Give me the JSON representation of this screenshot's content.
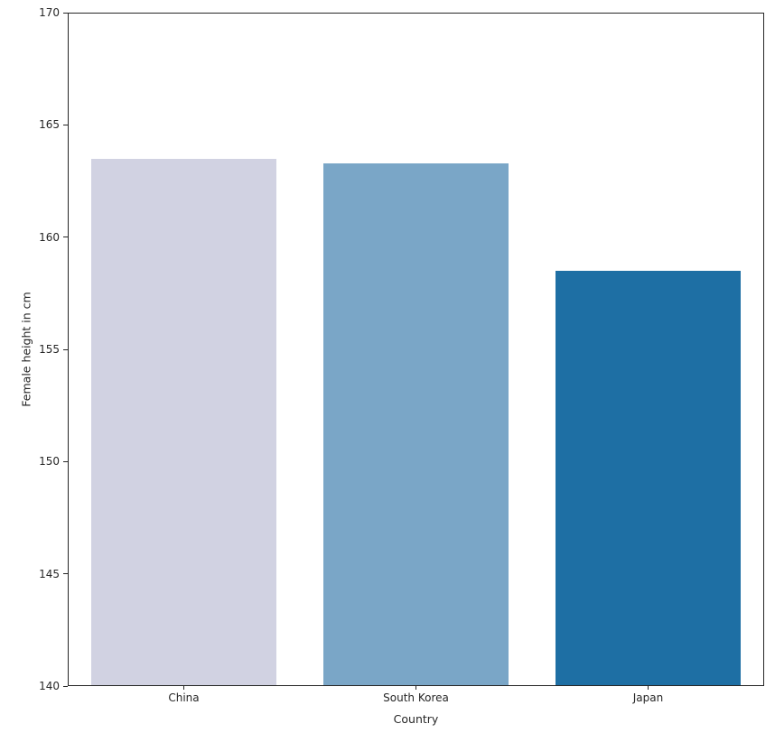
{
  "figure": {
    "background": "#ffffff",
    "spine_color": "#262626",
    "text_color": "#262626"
  },
  "chart_data": {
    "type": "bar",
    "categories": [
      "China",
      "South Korea",
      "Japan"
    ],
    "values": [
      163.5,
      163.3,
      158.5
    ],
    "bar_colors": [
      "#d1d2e2",
      "#7aa6c7",
      "#1e6fa4"
    ],
    "xlabel": "Country",
    "ylabel": "Female height in cm",
    "ylim": [
      140,
      170
    ],
    "yticks": [
      140,
      145,
      150,
      155,
      160,
      165,
      170
    ],
    "bar_width_fraction": 0.8,
    "grid": false,
    "legend": "none",
    "spines": "full-box"
  }
}
